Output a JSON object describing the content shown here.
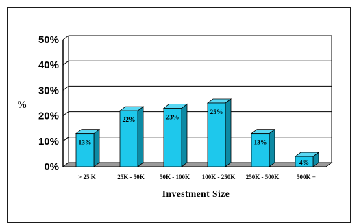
{
  "chart_data": {
    "type": "bar",
    "categories": [
      "> 25 K",
      "25K - 50K",
      "50K - 100K",
      "100K - 250K",
      "250K - 500K",
      "500K +"
    ],
    "values": [
      13,
      22,
      23,
      25,
      13,
      4
    ],
    "data_labels": [
      "13%",
      "22%",
      "23%",
      "25%",
      "13%",
      "4%"
    ],
    "y_tick_labels": [
      "0%",
      "10%",
      "20%",
      "30%",
      "40%",
      "50%"
    ],
    "ylim": [
      0,
      50
    ],
    "xlabel": "Investment Size",
    "ylabel": "%",
    "grid": true,
    "three_d": true,
    "colors": {
      "bar_front": "#1ec8ec",
      "bar_side": "#0d8aa4",
      "bar_top": "#5ad8f3",
      "floor": "#9a9a9a",
      "grid": "#000000"
    }
  }
}
